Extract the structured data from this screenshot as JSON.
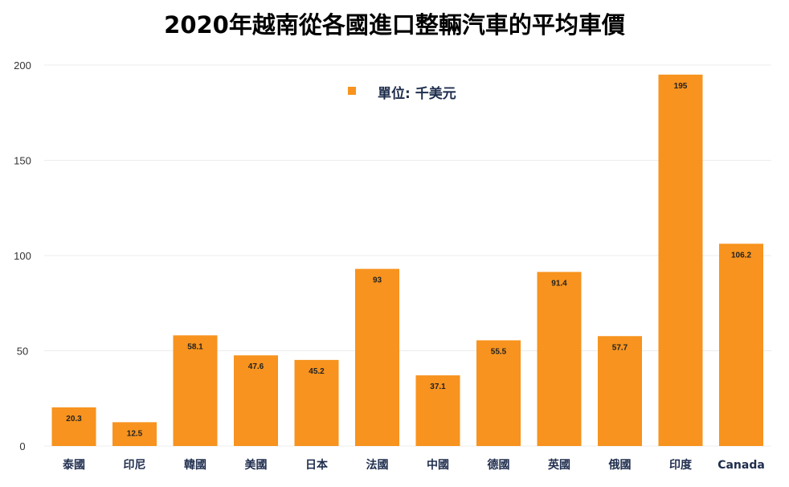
{
  "chart_data": {
    "type": "bar",
    "title": "2020年越南從各國進口整輛汽車的平均車價",
    "categories": [
      "泰國",
      "印尼",
      "韓國",
      "美國",
      "日本",
      "法國",
      "中國",
      "德國",
      "英國",
      "俄國",
      "印度",
      "Canada"
    ],
    "series": [
      {
        "name": "單位: 千美元",
        "values": [
          20.3,
          12.5,
          58.1,
          47.6,
          45.2,
          93,
          37.1,
          55.5,
          91.4,
          57.7,
          195,
          106.2
        ]
      }
    ],
    "value_labels": [
      "20.3",
      "12.5",
      "58.1",
      "47.6",
      "45.2",
      "93",
      "37.1",
      "55.5",
      "91.4",
      "57.7",
      "195",
      "106.2"
    ],
    "yticks": [
      "0",
      "50",
      "100",
      "150",
      "200"
    ],
    "ylim": [
      0,
      200
    ],
    "grid": true,
    "legend_position": "top-center",
    "bar_color": "#F7931E",
    "xlabel": "",
    "ylabel": ""
  }
}
